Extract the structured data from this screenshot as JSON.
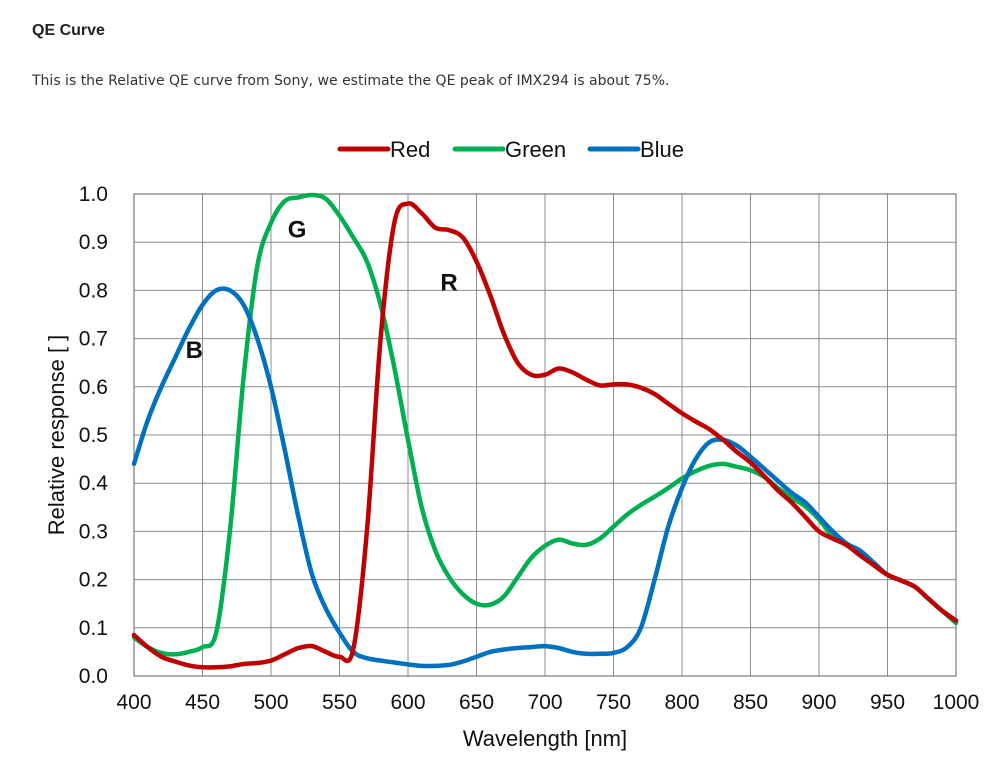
{
  "page": {
    "heading": "QE Curve",
    "description": "This is the Relative QE curve from Sony, we estimate the QE peak of IMX294 is about 75%."
  },
  "chart_data": {
    "type": "line",
    "title": "",
    "xlabel": "Wavelength [nm]",
    "ylabel": "Relative response [ ]",
    "xlim": [
      400,
      1000
    ],
    "ylim": [
      0.0,
      1.0
    ],
    "grid": true,
    "legend_position": "top-center",
    "xticks": [
      "400",
      "450",
      "500",
      "550",
      "600",
      "650",
      "700",
      "750",
      "800",
      "850",
      "900",
      "950",
      "1000"
    ],
    "yticks": [
      "0.0",
      "0.1",
      "0.2",
      "0.3",
      "0.4",
      "0.5",
      "0.6",
      "0.7",
      "0.8",
      "0.9",
      "1.0"
    ],
    "x": [
      400,
      410,
      420,
      430,
      440,
      450,
      460,
      470,
      480,
      490,
      500,
      510,
      520,
      530,
      540,
      550,
      560,
      570,
      580,
      590,
      600,
      610,
      620,
      630,
      640,
      650,
      660,
      670,
      680,
      690,
      700,
      710,
      720,
      730,
      740,
      750,
      760,
      770,
      780,
      790,
      800,
      810,
      820,
      830,
      840,
      850,
      860,
      870,
      880,
      890,
      900,
      910,
      920,
      930,
      940,
      950,
      960,
      970,
      980,
      990,
      1000
    ],
    "series": [
      {
        "name": "Red",
        "color": "#c00000",
        "values": [
          0.085,
          0.06,
          0.04,
          0.03,
          0.022,
          0.018,
          0.018,
          0.02,
          0.025,
          0.027,
          0.032,
          0.045,
          0.058,
          0.062,
          0.05,
          0.04,
          0.055,
          0.3,
          0.7,
          0.94,
          0.98,
          0.96,
          0.93,
          0.925,
          0.91,
          0.86,
          0.79,
          0.71,
          0.65,
          0.625,
          0.625,
          0.638,
          0.63,
          0.615,
          0.603,
          0.605,
          0.605,
          0.598,
          0.585,
          0.565,
          0.545,
          0.528,
          0.512,
          0.49,
          0.465,
          0.443,
          0.415,
          0.385,
          0.36,
          0.33,
          0.3,
          0.285,
          0.272,
          0.25,
          0.23,
          0.21,
          0.198,
          0.185,
          0.16,
          0.135,
          0.115
        ]
      },
      {
        "name": "Green",
        "color": "#00b050",
        "values": [
          0.08,
          0.06,
          0.048,
          0.045,
          0.05,
          0.06,
          0.09,
          0.3,
          0.62,
          0.85,
          0.94,
          0.985,
          0.993,
          0.998,
          0.99,
          0.955,
          0.91,
          0.86,
          0.77,
          0.64,
          0.49,
          0.35,
          0.26,
          0.205,
          0.17,
          0.15,
          0.148,
          0.165,
          0.205,
          0.245,
          0.27,
          0.283,
          0.275,
          0.272,
          0.285,
          0.31,
          0.335,
          0.355,
          0.372,
          0.39,
          0.41,
          0.425,
          0.436,
          0.44,
          0.434,
          0.427,
          0.413,
          0.39,
          0.37,
          0.352,
          0.325,
          0.29,
          0.275,
          0.255,
          0.23,
          0.21,
          0.198,
          0.185,
          0.16,
          0.135,
          0.11
        ]
      },
      {
        "name": "Blue",
        "color": "#0070c0",
        "values": [
          0.44,
          0.53,
          0.6,
          0.66,
          0.72,
          0.77,
          0.8,
          0.8,
          0.77,
          0.7,
          0.6,
          0.47,
          0.33,
          0.21,
          0.14,
          0.09,
          0.05,
          0.037,
          0.032,
          0.028,
          0.024,
          0.021,
          0.021,
          0.023,
          0.03,
          0.04,
          0.05,
          0.055,
          0.058,
          0.06,
          0.062,
          0.058,
          0.05,
          0.046,
          0.046,
          0.048,
          0.06,
          0.1,
          0.2,
          0.31,
          0.39,
          0.45,
          0.485,
          0.49,
          0.478,
          0.455,
          0.43,
          0.405,
          0.38,
          0.36,
          0.33,
          0.3,
          0.275,
          0.26,
          0.235,
          0.21,
          0.198,
          0.185,
          0.16,
          0.135,
          0.115
        ]
      }
    ],
    "annotations": [
      {
        "text": "B",
        "x": 444,
        "y": 0.66
      },
      {
        "text": "G",
        "x": 519,
        "y": 0.91
      },
      {
        "text": "R",
        "x": 630,
        "y": 0.8
      }
    ]
  }
}
